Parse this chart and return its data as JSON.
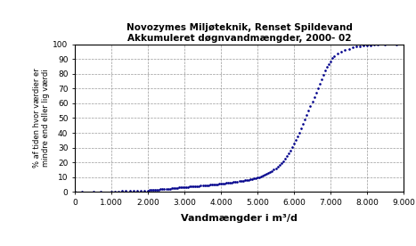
{
  "title_line1": "Novozymes Miljøteknik, Renset Spildevand",
  "title_line2": "Akkumuleret døgnvandmængder, 2000- 02",
  "xlabel": "Vandmængder i m³/d",
  "ylabel_line1": "% af tiden hvor værdier er",
  "ylabel_line2": "mindre end eller lig værdi",
  "xlim": [
    0,
    9000
  ],
  "ylim": [
    0,
    100
  ],
  "xticks": [
    0,
    1000,
    2000,
    3000,
    4000,
    5000,
    6000,
    7000,
    8000,
    9000
  ],
  "yticks": [
    0,
    10,
    20,
    30,
    40,
    50,
    60,
    70,
    80,
    90,
    100
  ],
  "xtick_labels": [
    "0",
    "1.000",
    "2.000",
    "3.000",
    "4.000",
    "5.000",
    "6.000",
    "7.000",
    "8.000",
    "9.000"
  ],
  "dot_color": "#00008B",
  "background_color": "#ffffff",
  "curve_x": [
    0,
    200,
    500,
    700,
    1000,
    1100,
    1200,
    1300,
    1400,
    1500,
    1600,
    1700,
    1800,
    1900,
    2000,
    2050,
    2100,
    2150,
    2200,
    2250,
    2300,
    2350,
    2400,
    2450,
    2500,
    2550,
    2600,
    2650,
    2700,
    2750,
    2800,
    2850,
    2900,
    2950,
    3000,
    3050,
    3100,
    3150,
    3200,
    3250,
    3300,
    3350,
    3400,
    3450,
    3500,
    3550,
    3600,
    3650,
    3700,
    3750,
    3800,
    3850,
    3900,
    3950,
    4000,
    4050,
    4100,
    4150,
    4200,
    4250,
    4300,
    4350,
    4400,
    4450,
    4500,
    4550,
    4600,
    4650,
    4700,
    4750,
    4800,
    4850,
    4900,
    4950,
    5000,
    5050,
    5100,
    5150,
    5200,
    5250,
    5300,
    5350,
    5400,
    5450,
    5500,
    5550,
    5600,
    5650,
    5700,
    5750,
    5800,
    5850,
    5900,
    5950,
    6000,
    6050,
    6100,
    6150,
    6200,
    6250,
    6300,
    6350,
    6400,
    6450,
    6500,
    6550,
    6600,
    6650,
    6700,
    6750,
    6800,
    6850,
    6900,
    6950,
    7000,
    7050,
    7100,
    7200,
    7300,
    7400,
    7500,
    7600,
    7700,
    7800,
    7900,
    8000,
    8100,
    8200,
    8300,
    8500,
    8800
  ],
  "curve_y": [
    0,
    0.1,
    0.15,
    0.2,
    0.3,
    0.35,
    0.4,
    0.5,
    0.55,
    0.6,
    0.65,
    0.7,
    0.8,
    0.9,
    1.0,
    1.1,
    1.2,
    1.3,
    1.4,
    1.5,
    1.6,
    1.7,
    1.8,
    1.9,
    2.0,
    2.1,
    2.2,
    2.3,
    2.5,
    2.6,
    2.7,
    2.9,
    3.0,
    3.1,
    3.2,
    3.3,
    3.4,
    3.5,
    3.6,
    3.7,
    3.8,
    3.9,
    4.0,
    4.1,
    4.3,
    4.4,
    4.5,
    4.6,
    4.8,
    4.9,
    5.0,
    5.1,
    5.3,
    5.4,
    5.5,
    5.7,
    5.8,
    6.0,
    6.1,
    6.3,
    6.5,
    6.6,
    6.8,
    7.0,
    7.2,
    7.4,
    7.6,
    7.8,
    8.0,
    8.3,
    8.5,
    8.8,
    9.1,
    9.4,
    9.7,
    10.1,
    10.5,
    11.0,
    11.5,
    12.0,
    12.7,
    13.4,
    14.2,
    15.0,
    16.0,
    17.0,
    18.2,
    19.5,
    21.0,
    22.5,
    24.2,
    26.0,
    28.0,
    30.2,
    32.5,
    35.0,
    37.5,
    40.2,
    43.0,
    46.0,
    49.0,
    52.0,
    55.0,
    58.0,
    61.0,
    64.0,
    67.0,
    70.0,
    73.0,
    76.0,
    79.0,
    82.0,
    84.5,
    86.5,
    88.5,
    90.5,
    92.0,
    93.5,
    95.0,
    96.0,
    97.0,
    97.8,
    98.3,
    98.7,
    99.0,
    99.3,
    99.5,
    99.7,
    99.8,
    100.0,
    100.0
  ]
}
